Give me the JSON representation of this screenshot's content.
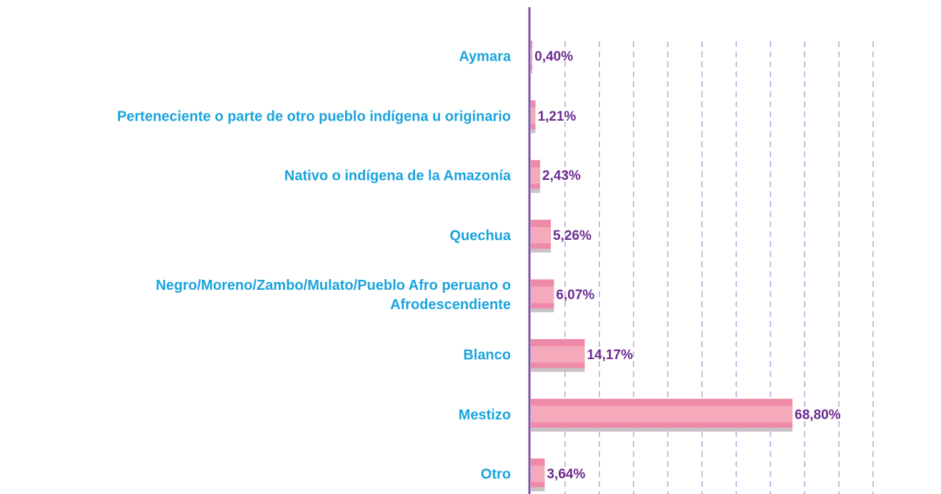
{
  "chart_data": {
    "type": "bar",
    "orientation": "horizontal",
    "categories": [
      "Aymara",
      "Perteneciente o parte de otro pueblo indígena u originario",
      "Nativo o indígena de la Amazonía",
      "Quechua",
      "Negro/Moreno/Zambo/Mulato/Pueblo Afro peruano o Afrodescendiente",
      "Blanco",
      "Mestizo",
      "Otro"
    ],
    "values": [
      0.4,
      1.21,
      2.43,
      5.26,
      6.07,
      14.17,
      68.8,
      3.64
    ],
    "value_labels": [
      "0,40%",
      "1,21%",
      "2,43%",
      "5,26%",
      "6,07%",
      "14,17%",
      "68,80%",
      "3,64%"
    ],
    "color": "#f4a6b8",
    "xlim": [
      0,
      90
    ],
    "xgrid": [
      9,
      18,
      27,
      36,
      45,
      54,
      63,
      72,
      81,
      90
    ],
    "grid": true
  }
}
